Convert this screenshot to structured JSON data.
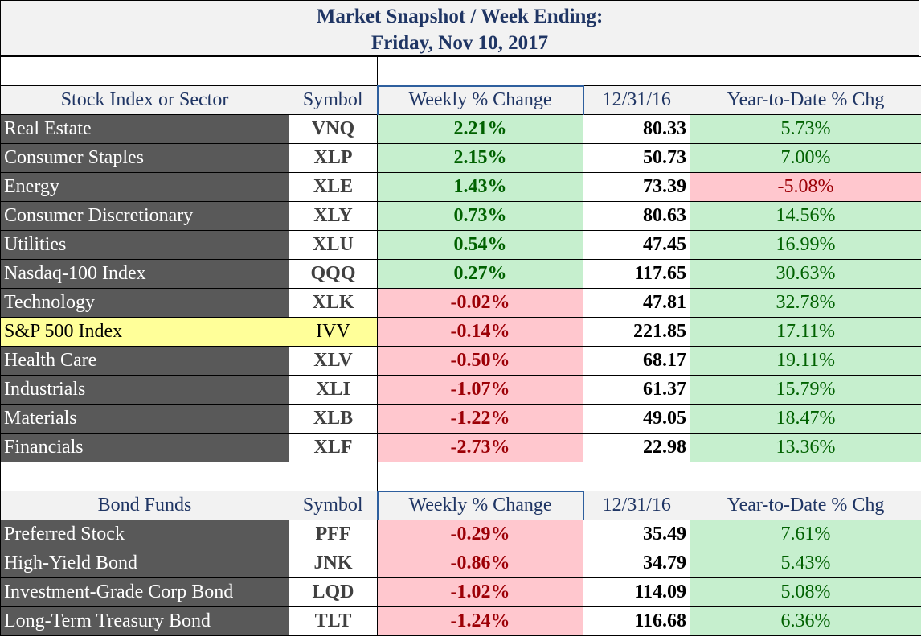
{
  "title": {
    "line1": "Market Snapshot / Week Ending:",
    "line2": "Friday, Nov 10, 2017"
  },
  "colors": {
    "title_text": "#1f3564",
    "header_bg": "#f2f2f2",
    "name_bg": "#595959",
    "highlight_bg": "#ffff99",
    "positive_bg": "#c6efce",
    "positive_text": "#006100",
    "negative_bg": "#ffc7ce",
    "negative_text": "#9c0006",
    "column_outline": "#2e5f9e"
  },
  "stocks": {
    "headers": {
      "name": "Stock Index or Sector",
      "symbol": "Symbol",
      "weekly": "Weekly % Change",
      "base": "12/31/16",
      "ytd": "Year-to-Date % Chg"
    },
    "rows": [
      {
        "name": "Real Estate",
        "symbol": "VNQ",
        "weekly": "2.21%",
        "base": "80.33",
        "ytd": "5.73%"
      },
      {
        "name": "Consumer Staples",
        "symbol": "XLP",
        "weekly": "2.15%",
        "base": "50.73",
        "ytd": "7.00%"
      },
      {
        "name": "Energy",
        "symbol": "XLE",
        "weekly": "1.43%",
        "base": "73.39",
        "ytd": "-5.08%"
      },
      {
        "name": "Consumer Discretionary",
        "symbol": "XLY",
        "weekly": "0.73%",
        "base": "80.63",
        "ytd": "14.56%"
      },
      {
        "name": "Utilities",
        "symbol": "XLU",
        "weekly": "0.54%",
        "base": "47.45",
        "ytd": "16.99%"
      },
      {
        "name": "Nasdaq-100 Index",
        "symbol": "QQQ",
        "weekly": "0.27%",
        "base": "117.65",
        "ytd": "30.63%"
      },
      {
        "name": "Technology",
        "symbol": "XLK",
        "weekly": "-0.02%",
        "base": "47.81",
        "ytd": "32.78%"
      },
      {
        "name": "S&P 500 Index",
        "symbol": "IVV",
        "weekly": "-0.14%",
        "base": "221.85",
        "ytd": "17.11%"
      },
      {
        "name": "Health Care",
        "symbol": "XLV",
        "weekly": "-0.50%",
        "base": "68.17",
        "ytd": "19.11%"
      },
      {
        "name": "Industrials",
        "symbol": "XLI",
        "weekly": "-1.07%",
        "base": "61.37",
        "ytd": "15.79%"
      },
      {
        "name": "Materials",
        "symbol": "XLB",
        "weekly": "-1.22%",
        "base": "49.05",
        "ytd": "18.47%"
      },
      {
        "name": "Financials",
        "symbol": "XLF",
        "weekly": "-2.73%",
        "base": "22.98",
        "ytd": "13.36%"
      }
    ]
  },
  "bonds": {
    "headers": {
      "name": "Bond Funds",
      "symbol": "Symbol",
      "weekly": "Weekly % Change",
      "base": "12/31/16",
      "ytd": "Year-to-Date % Chg"
    },
    "rows": [
      {
        "name": "Preferred Stock",
        "symbol": "PFF",
        "weekly": "-0.29%",
        "base": "35.49",
        "ytd": "7.61%"
      },
      {
        "name": "High-Yield Bond",
        "symbol": "JNK",
        "weekly": "-0.86%",
        "base": "34.79",
        "ytd": "5.43%"
      },
      {
        "name": "Investment-Grade Corp Bond",
        "symbol": "LQD",
        "weekly": "-1.02%",
        "base": "114.09",
        "ytd": "5.08%"
      },
      {
        "name": "Long-Term Treasury Bond",
        "symbol": "TLT",
        "weekly": "-1.24%",
        "base": "116.68",
        "ytd": "6.36%"
      }
    ]
  }
}
